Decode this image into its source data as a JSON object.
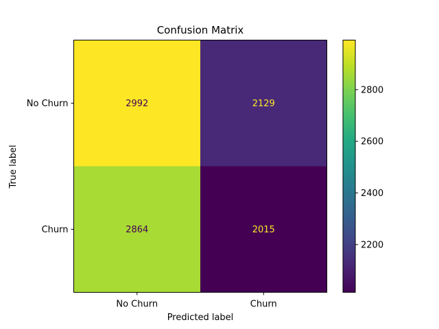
{
  "chart_data": {
    "type": "heatmap",
    "title": "Confusion Matrix",
    "xlabel": "Predicted label",
    "ylabel": "True label",
    "x_categories": [
      "No Churn",
      "Churn"
    ],
    "y_categories": [
      "No Churn",
      "Churn"
    ],
    "values": [
      [
        2992,
        2129
      ],
      [
        2864,
        2015
      ]
    ],
    "colormap": "viridis",
    "colorbar": {
      "min": 2015,
      "max": 2992,
      "ticks": [
        2200,
        2400,
        2600,
        2800
      ],
      "tick_labels": [
        "2200",
        "2400",
        "2600",
        "2800"
      ]
    },
    "grid": false
  }
}
